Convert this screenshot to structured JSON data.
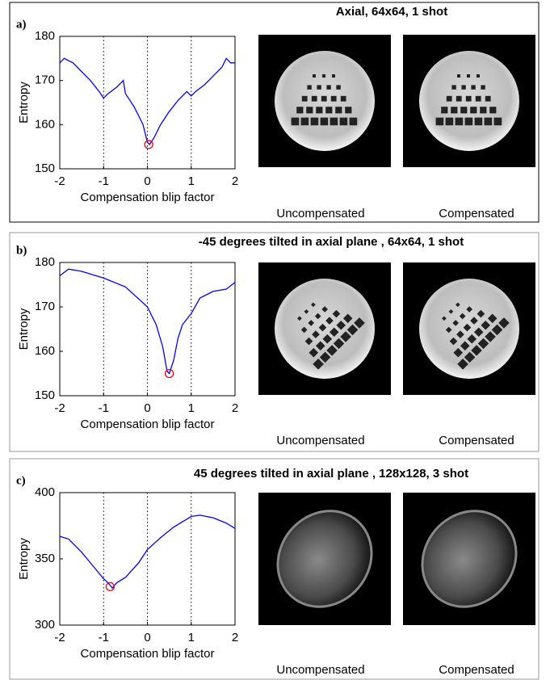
{
  "chart_data": [
    {
      "type": "line",
      "panel": "a)",
      "title": "Axial, 64x64, 1 shot",
      "xlabel": "Compensation blip factor",
      "ylabel": "Entropy",
      "image_captions": [
        "Uncompensated",
        "Compensated"
      ],
      "xlim": [
        -2,
        2
      ],
      "ylim": [
        150,
        180
      ],
      "xticks": [
        -2,
        -1,
        0,
        1,
        2
      ],
      "yticks": [
        150,
        160,
        170,
        180
      ],
      "xgrid": true,
      "series": [
        {
          "color": "#0000ff",
          "x": [
            -2,
            -1.9,
            -1.7,
            -1.5,
            -1.3,
            -1.1,
            -1,
            -0.9,
            -0.7,
            -0.6,
            -0.55,
            -0.5,
            -0.3,
            -0.1,
            0,
            0.05,
            0.15,
            0.3,
            0.5,
            0.7,
            0.9,
            1,
            1.1,
            1.3,
            1.5,
            1.7,
            1.8,
            1.9,
            2
          ],
          "values": [
            174,
            175,
            174,
            172,
            170,
            167.5,
            166,
            167,
            168.5,
            169.5,
            170,
            167,
            164,
            160,
            156,
            155.5,
            157,
            160,
            163,
            165.5,
            167.5,
            166.5,
            167.5,
            169,
            171,
            173,
            175,
            174,
            174
          ]
        }
      ],
      "marker": {
        "x": 0.03,
        "y": 155.5,
        "color": "#ff0000"
      }
    },
    {
      "type": "line",
      "panel": "b)",
      "title": "-45 degrees tilted in axial plane , 64x64, 1 shot",
      "xlabel": "Compensation blip factor",
      "ylabel": "Entropy",
      "image_captions": [
        "Uncompensated",
        "Compensated"
      ],
      "xlim": [
        -2,
        2
      ],
      "ylim": [
        150,
        180
      ],
      "xticks": [
        -2,
        -1,
        0,
        1,
        2
      ],
      "yticks": [
        150,
        160,
        170,
        180
      ],
      "xgrid": true,
      "series": [
        {
          "color": "#0000ff",
          "x": [
            -2,
            -1.8,
            -1.5,
            -1,
            -0.5,
            0,
            0.2,
            0.35,
            0.45,
            0.5,
            0.6,
            0.7,
            0.8,
            1,
            1.2,
            1.5,
            1.8,
            2
          ],
          "values": [
            177,
            178.5,
            178,
            176.5,
            174.5,
            170,
            166,
            161,
            155.5,
            155,
            158,
            163,
            166,
            168.5,
            172,
            173.5,
            174,
            175.5
          ]
        }
      ],
      "marker": {
        "x": 0.5,
        "y": 155,
        "color": "#ff0000"
      }
    },
    {
      "type": "line",
      "panel": "c)",
      "title": "45 degrees tilted in axial plane , 128x128, 3 shot",
      "xlabel": "Compensation blip factor",
      "ylabel": "Entropy",
      "image_captions": [
        "Uncompensated",
        "Compensated"
      ],
      "xlim": [
        -2,
        2
      ],
      "ylim": [
        300,
        400
      ],
      "xticks": [
        -2,
        -1,
        0,
        1,
        2
      ],
      "yticks": [
        300,
        350,
        400
      ],
      "xgrid": true,
      "series": [
        {
          "color": "#0000ff",
          "x": [
            -2,
            -1.8,
            -1.5,
            -1.2,
            -1,
            -0.9,
            -0.8,
            -0.7,
            -0.5,
            -0.2,
            0,
            0.3,
            0.6,
            0.9,
            1,
            1.2,
            1.5,
            1.8,
            2
          ],
          "values": [
            367,
            365,
            355,
            343,
            335,
            332,
            328,
            332,
            336,
            347,
            357,
            366,
            374,
            380,
            382,
            383,
            381,
            377,
            373
          ]
        }
      ],
      "marker": {
        "x": -0.85,
        "y": 329,
        "color": "#ff0000"
      }
    }
  ]
}
